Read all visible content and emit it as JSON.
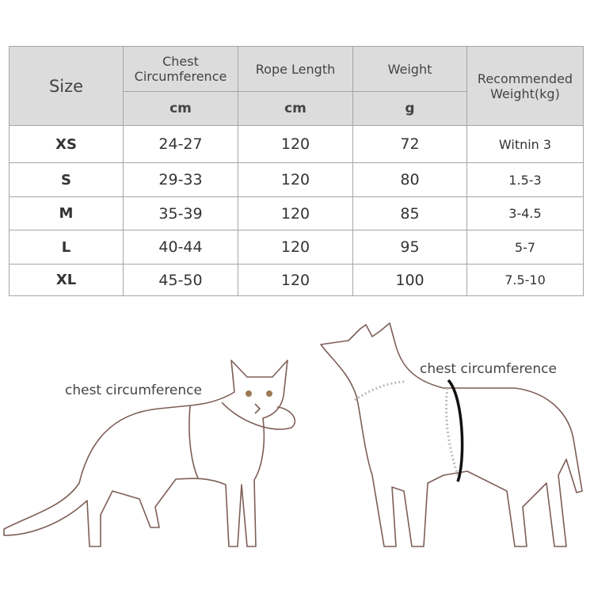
{
  "table": {
    "header": {
      "size": "Size",
      "columns": [
        {
          "name": "Chest Circumference",
          "unit": "cm"
        },
        {
          "name": "Rope Length",
          "unit": "cm"
        },
        {
          "name": "Weight",
          "unit": "g"
        },
        {
          "name": "Recommended Weight(kg)"
        }
      ]
    },
    "rows": [
      [
        "XS",
        "24-27",
        120,
        72,
        "Witnin 3"
      ],
      [
        "S",
        "29-33",
        120,
        80,
        "1.5-3"
      ],
      [
        "M",
        "35-39",
        120,
        85,
        "3-4.5"
      ],
      [
        "L",
        "40-44",
        120,
        95,
        "5-7"
      ],
      [
        "XL",
        "45-50",
        120,
        100,
        "7.5-10"
      ]
    ]
  },
  "illustrations": {
    "cat_label": "chest circumference",
    "dog_label": "chest circumference"
  }
}
